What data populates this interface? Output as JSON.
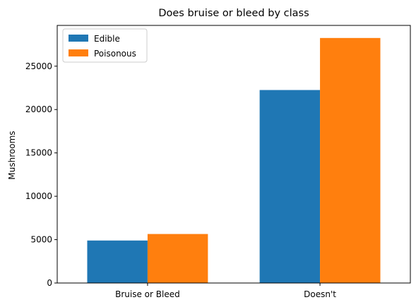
{
  "chart_data": {
    "type": "bar",
    "title": "Does bruise or bleed by class",
    "xlabel": "",
    "ylabel": "Mushrooms",
    "categories": [
      "Bruise or Bleed",
      "Doesn't"
    ],
    "series": [
      {
        "name": "Edible",
        "color": "#1f77b4",
        "values": [
          4900,
          22250
        ]
      },
      {
        "name": "Poisonous",
        "color": "#ff7f0e",
        "values": [
          5650,
          28250
        ]
      }
    ],
    "ylim": [
      0,
      29700
    ],
    "yticks": [
      0,
      5000,
      10000,
      15000,
      20000,
      25000
    ],
    "legend_position": "top-left",
    "grid": false
  }
}
